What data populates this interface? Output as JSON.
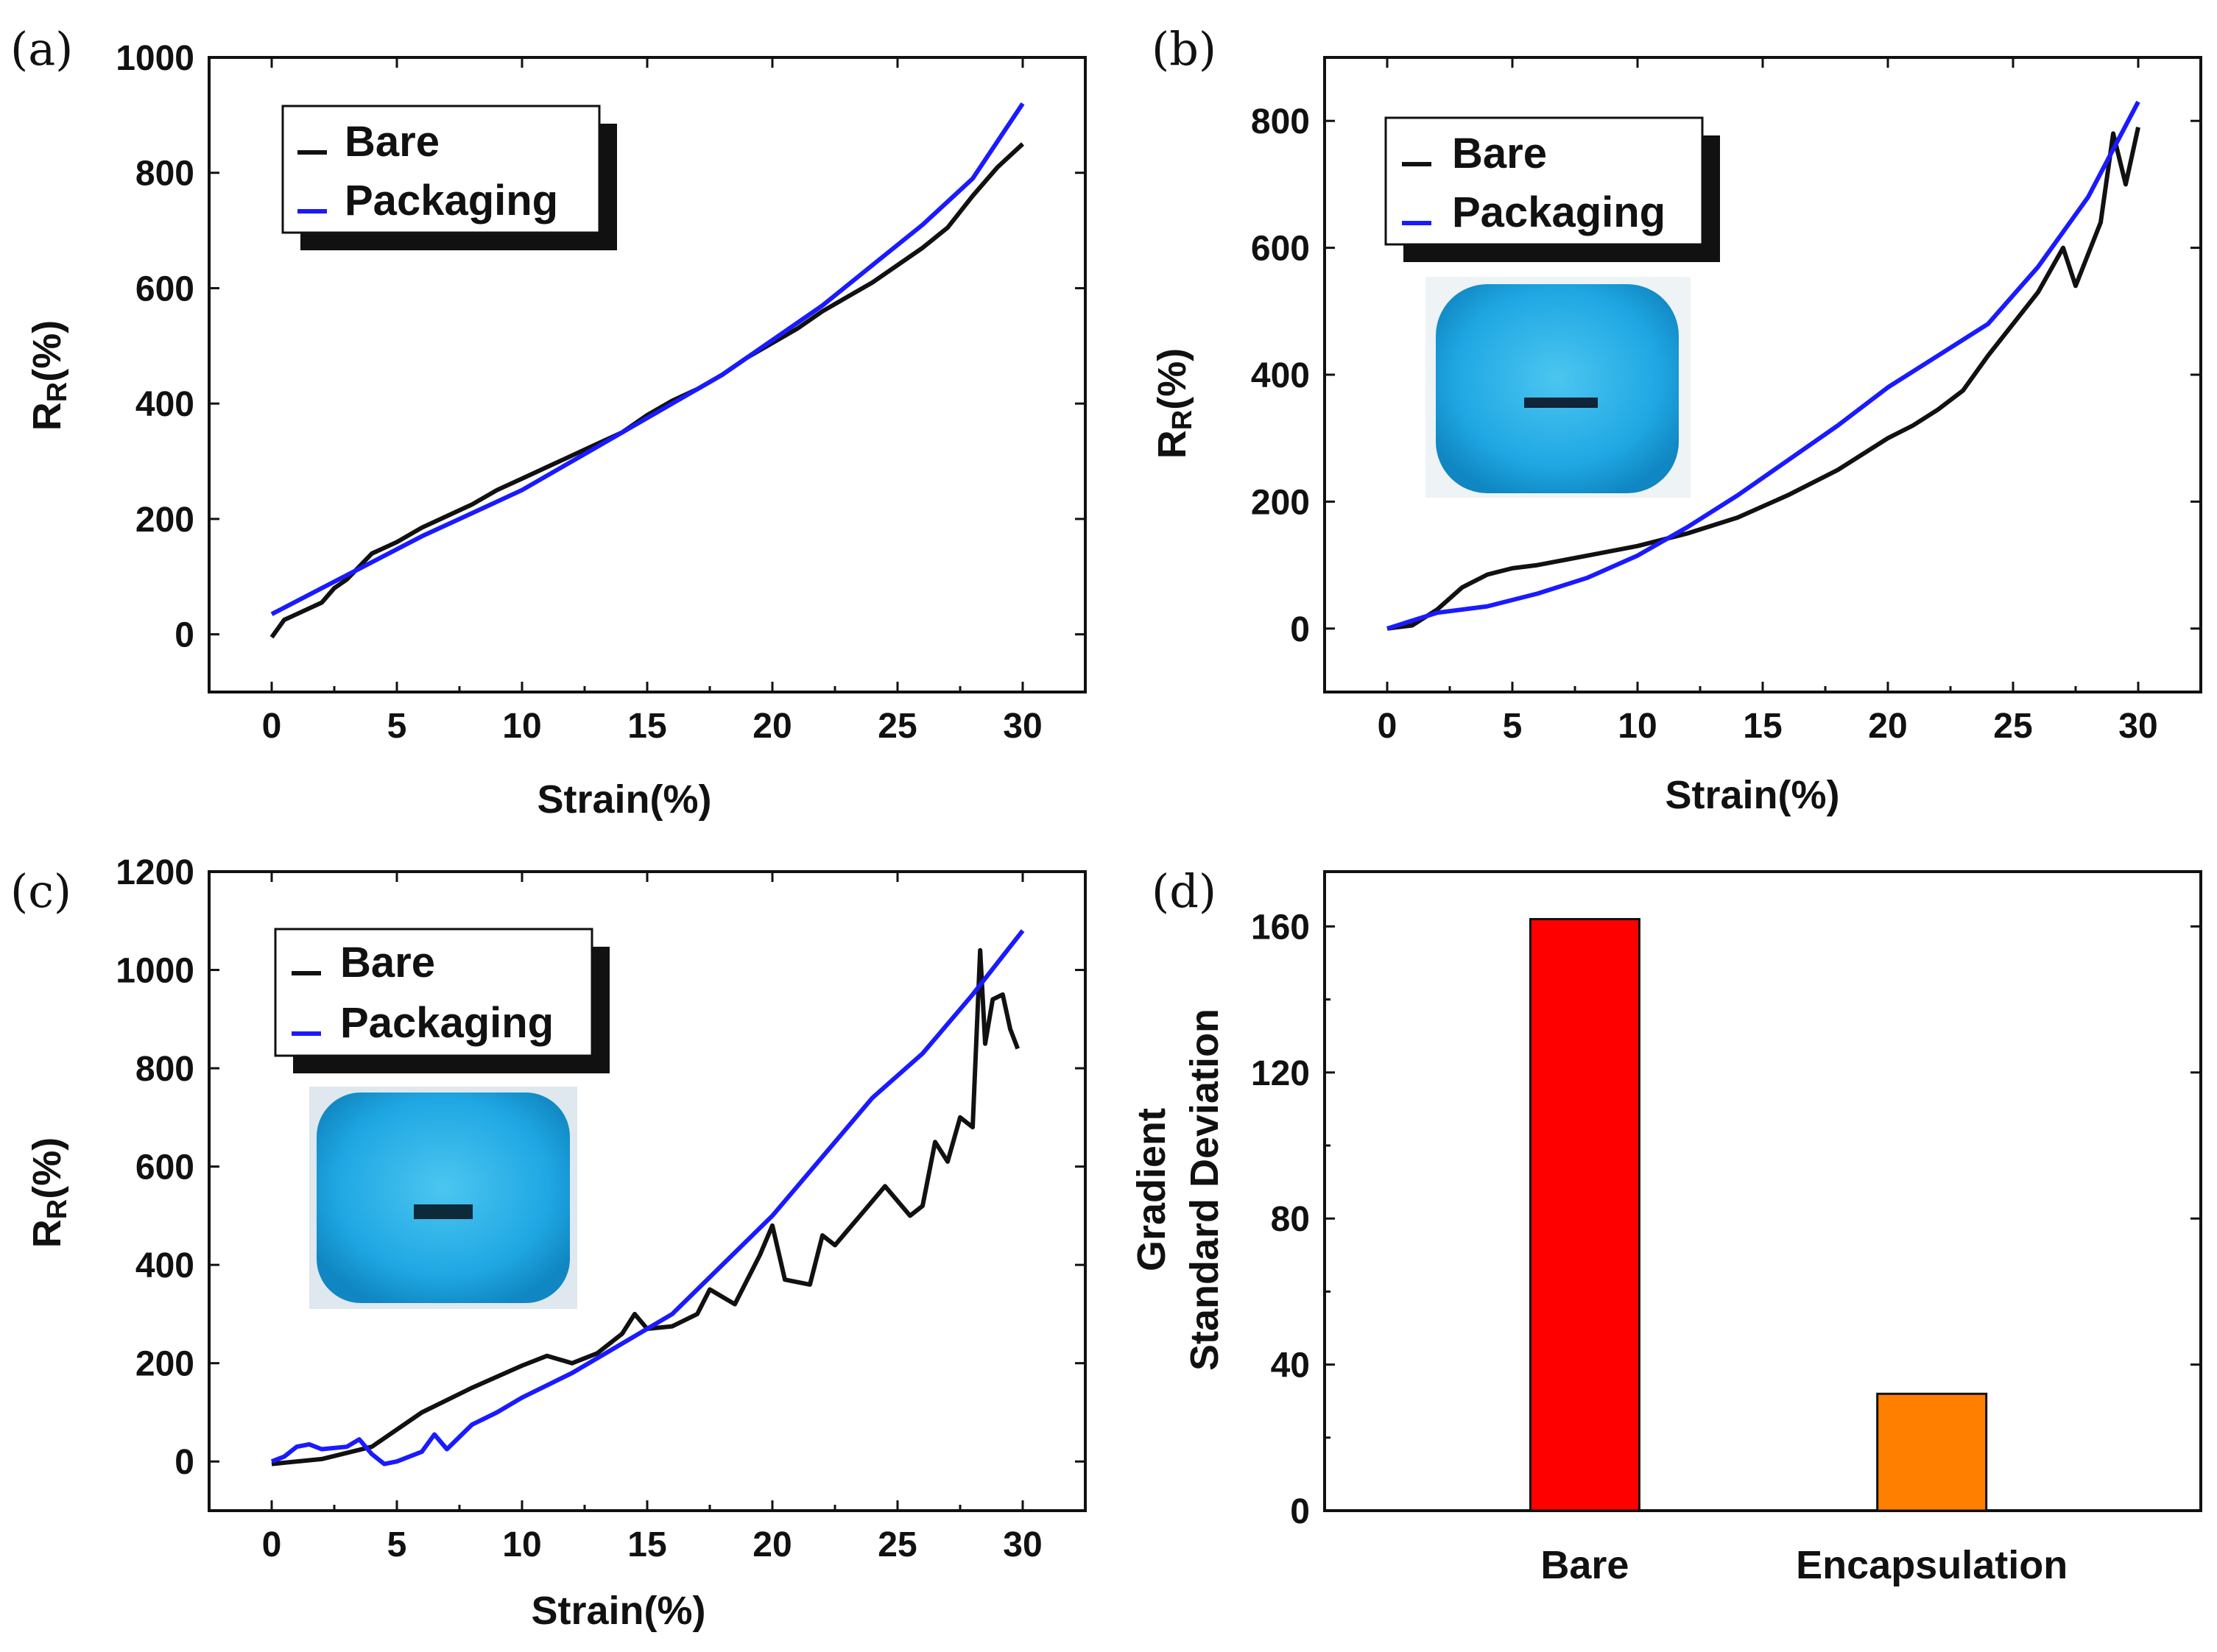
{
  "chart_data": [
    {
      "panel": "(a)",
      "type": "line",
      "xlabel": "Strain(%)",
      "ylabel_main": "R",
      "ylabel_sub": "R",
      "ylabel_tail": "(%)",
      "xlim": [
        -2.5,
        32.5
      ],
      "ylim": [
        -100,
        1000
      ],
      "xticks": [
        0,
        5,
        10,
        15,
        20,
        25,
        30
      ],
      "yticks": [
        0,
        200,
        400,
        600,
        800,
        1000
      ],
      "inset_photo": false,
      "series": [
        {
          "name": "Bare",
          "color": "#111111",
          "x": [
            0,
            0.5,
            1,
            2,
            2.5,
            3,
            4,
            5,
            6,
            7,
            8,
            9,
            10,
            11,
            12,
            13,
            14,
            15,
            16,
            17,
            18,
            19,
            20,
            21,
            22,
            23,
            24,
            25,
            26,
            27,
            28,
            29,
            30
          ],
          "y": [
            -5,
            25,
            35,
            55,
            80,
            95,
            140,
            160,
            185,
            205,
            225,
            250,
            270,
            290,
            310,
            330,
            350,
            380,
            405,
            425,
            450,
            480,
            505,
            530,
            560,
            585,
            610,
            640,
            670,
            705,
            760,
            810,
            850
          ]
        },
        {
          "name": "Packaging",
          "color": "#1a1aff",
          "x": [
            0,
            2,
            4,
            6,
            8,
            10,
            12,
            14,
            16,
            18,
            20,
            22,
            24,
            26,
            28,
            30
          ],
          "y": [
            35,
            80,
            125,
            170,
            210,
            250,
            300,
            350,
            400,
            450,
            510,
            570,
            640,
            710,
            790,
            920
          ]
        }
      ]
    },
    {
      "panel": "(b)",
      "type": "line",
      "xlabel": "Strain(%)",
      "ylabel_main": "R",
      "ylabel_sub": "R",
      "ylabel_tail": "(%)",
      "xlim": [
        -2.5,
        32.5
      ],
      "ylim": [
        -100,
        900
      ],
      "xticks": [
        0,
        5,
        10,
        15,
        20,
        25,
        30
      ],
      "yticks": [
        0,
        200,
        400,
        600,
        800
      ],
      "inset_photo": true,
      "series": [
        {
          "name": "Bare",
          "color": "#111111",
          "x": [
            0,
            1,
            2,
            3,
            4,
            5,
            6,
            8,
            10,
            12,
            14,
            16,
            18,
            20,
            21,
            22,
            23,
            24,
            25,
            26,
            27,
            27.5,
            28,
            28.5,
            29,
            29.5,
            30
          ],
          "y": [
            0,
            5,
            30,
            65,
            85,
            95,
            100,
            115,
            130,
            150,
            175,
            210,
            250,
            300,
            320,
            345,
            375,
            430,
            480,
            530,
            600,
            540,
            590,
            640,
            780,
            700,
            790
          ]
        },
        {
          "name": "Packaging",
          "color": "#1a1aff",
          "x": [
            0,
            2,
            4,
            6,
            8,
            10,
            12,
            14,
            16,
            18,
            20,
            22,
            24,
            26,
            28,
            30
          ],
          "y": [
            0,
            25,
            35,
            55,
            80,
            115,
            160,
            210,
            265,
            320,
            380,
            430,
            480,
            570,
            680,
            830
          ]
        }
      ]
    },
    {
      "panel": "(c)",
      "type": "line",
      "xlabel": "Strain(%)",
      "ylabel_main": "R",
      "ylabel_sub": "R",
      "ylabel_tail": "(%)",
      "xlim": [
        -2.5,
        32.5
      ],
      "ylim": [
        -100,
        1200
      ],
      "xticks": [
        0,
        5,
        10,
        15,
        20,
        25,
        30
      ],
      "yticks": [
        0,
        200,
        400,
        600,
        800,
        1000,
        1200
      ],
      "inset_photo": true,
      "series": [
        {
          "name": "Bare",
          "color": "#111111",
          "x": [
            0,
            2,
            4,
            6,
            8,
            10,
            11,
            12,
            13,
            14,
            14.5,
            15,
            16,
            17,
            17.5,
            18.5,
            19.5,
            20,
            20.5,
            21.5,
            22,
            22.5,
            23.5,
            24.5,
            25.5,
            26,
            26.5,
            27,
            27.5,
            28,
            28.3,
            28.5,
            28.8,
            29.2,
            29.5,
            29.8
          ],
          "y": [
            -5,
            5,
            30,
            100,
            150,
            195,
            215,
            200,
            220,
            260,
            300,
            270,
            275,
            300,
            350,
            320,
            420,
            480,
            370,
            360,
            460,
            440,
            500,
            560,
            500,
            520,
            650,
            610,
            700,
            680,
            1040,
            850,
            940,
            950,
            880,
            840
          ]
        },
        {
          "name": "Packaging",
          "color": "#1a1aff",
          "x": [
            0,
            0.5,
            1,
            1.5,
            2,
            3,
            3.5,
            4,
            4.5,
            5,
            6,
            6.5,
            7,
            7.5,
            8,
            9,
            10,
            12,
            14,
            16,
            18,
            20,
            22,
            24,
            26,
            28,
            30
          ],
          "y": [
            0,
            10,
            30,
            35,
            25,
            30,
            45,
            15,
            -5,
            0,
            20,
            55,
            25,
            50,
            75,
            100,
            130,
            180,
            240,
            300,
            400,
            500,
            620,
            740,
            830,
            950,
            1080
          ]
        }
      ]
    },
    {
      "panel": "(d)",
      "type": "bar",
      "ylabel_line1": "Gradient",
      "ylabel_line2": "Standard Deviation",
      "ylim": [
        0,
        175
      ],
      "yticks": [
        0,
        40,
        80,
        120,
        160
      ],
      "categories": [
        "Bare",
        "Encapsulation"
      ],
      "values": [
        162,
        32
      ],
      "colors": [
        "#ff0000",
        "#ff7f00"
      ]
    }
  ]
}
